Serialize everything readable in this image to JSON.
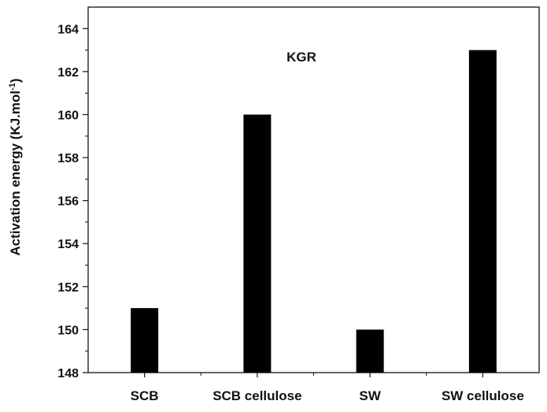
{
  "chart_data": {
    "type": "bar",
    "categories": [
      "SCB",
      "SCB cellulose",
      "SW",
      "SW cellulose"
    ],
    "values": [
      151,
      160,
      150,
      163
    ],
    "title": "",
    "annotation": "KGR",
    "xlabel": "",
    "ylabel_main": "Activation energy (KJ.mol",
    "ylabel_sup": "-1",
    "ylabel_end": ")",
    "ylim": [
      148,
      165
    ],
    "yticks": [
      148,
      150,
      152,
      154,
      156,
      158,
      160,
      162,
      164
    ],
    "grid": false,
    "bar_color": "#000000"
  }
}
